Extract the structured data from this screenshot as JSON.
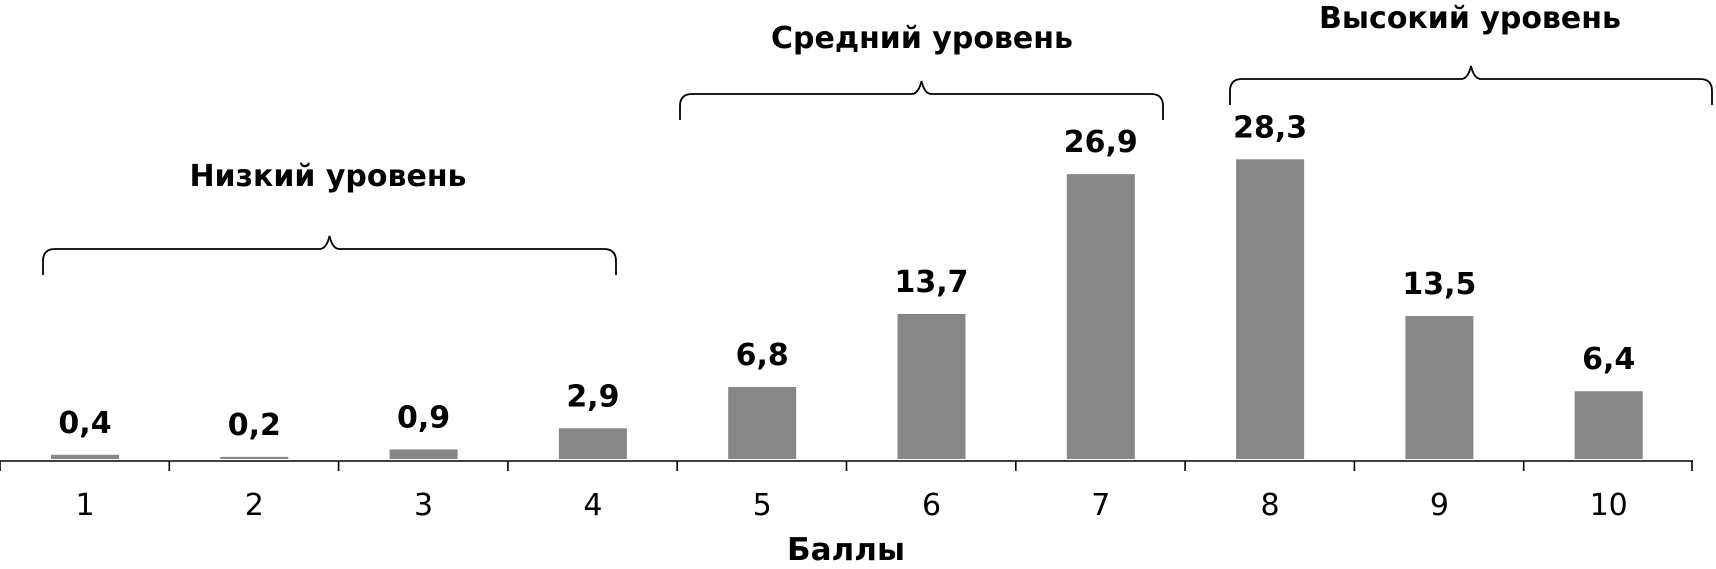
{
  "chart_data": {
    "type": "bar",
    "categories": [
      "1",
      "2",
      "3",
      "4",
      "5",
      "6",
      "7",
      "8",
      "9",
      "10"
    ],
    "values": [
      0.4,
      0.2,
      0.9,
      2.9,
      6.8,
      13.7,
      26.9,
      28.3,
      13.5,
      6.4
    ],
    "value_labels": [
      "0,4",
      "0,2",
      "0,9",
      "2,9",
      "6,8",
      "13,7",
      "26,9",
      "28,3",
      "13,5",
      "6,4"
    ],
    "xlabel": "Баллы",
    "ylabel": "",
    "ylim": [
      0,
      30
    ],
    "grid": false,
    "bar_color": "#878787",
    "groups": [
      {
        "label": "Низкий уровень",
        "from": "1",
        "to": "4"
      },
      {
        "label": "Средний уровень",
        "from": "5",
        "to": "7"
      },
      {
        "label": "Высокий уровень",
        "from": "8",
        "to": "10"
      }
    ]
  }
}
